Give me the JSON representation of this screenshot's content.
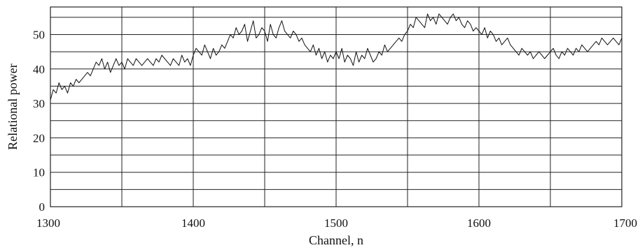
{
  "chart_data": {
    "type": "line",
    "title": "",
    "xlabel": "Channel, n",
    "ylabel": "Relational power",
    "xlim": [
      1300,
      1700
    ],
    "ylim": [
      0,
      58
    ],
    "x_ticks": [
      1300,
      1400,
      1500,
      1600,
      1700
    ],
    "x_grid": [
      1300,
      1350,
      1400,
      1450,
      1500,
      1550,
      1600,
      1650,
      1700
    ],
    "y_ticks": [
      0,
      10,
      20,
      30,
      40,
      50
    ],
    "y_grid": [
      0,
      5,
      10,
      15,
      20,
      25,
      30,
      35,
      40,
      45,
      50,
      55
    ],
    "grid": true,
    "series": [
      {
        "x": [
          1300,
          1302,
          1304,
          1306,
          1308,
          1310,
          1312,
          1314,
          1316,
          1318,
          1320,
          1322,
          1324,
          1326,
          1328,
          1330,
          1332,
          1334,
          1336,
          1338,
          1340,
          1342,
          1344,
          1346,
          1348,
          1350,
          1352,
          1354,
          1356,
          1358,
          1360,
          1362,
          1364,
          1366,
          1368,
          1370,
          1372,
          1374,
          1376,
          1378,
          1380,
          1382,
          1384,
          1386,
          1388,
          1390,
          1392,
          1394,
          1396,
          1398,
          1400,
          1402,
          1404,
          1406,
          1408,
          1410,
          1412,
          1414,
          1416,
          1418,
          1420,
          1422,
          1424,
          1426,
          1428,
          1430,
          1432,
          1434,
          1436,
          1438,
          1440,
          1442,
          1444,
          1446,
          1448,
          1450,
          1452,
          1454,
          1456,
          1458,
          1460,
          1462,
          1464,
          1466,
          1468,
          1470,
          1472,
          1474,
          1476,
          1478,
          1480,
          1482,
          1484,
          1486,
          1488,
          1490,
          1492,
          1494,
          1496,
          1498,
          1500,
          1502,
          1504,
          1506,
          1508,
          1510,
          1512,
          1514,
          1516,
          1518,
          1520,
          1522,
          1524,
          1526,
          1528,
          1530,
          1532,
          1534,
          1536,
          1538,
          1540,
          1542,
          1544,
          1546,
          1548,
          1550,
          1552,
          1554,
          1556,
          1558,
          1560,
          1562,
          1564,
          1566,
          1568,
          1570,
          1572,
          1574,
          1576,
          1578,
          1580,
          1582,
          1584,
          1586,
          1588,
          1590,
          1592,
          1594,
          1596,
          1598,
          1600,
          1602,
          1604,
          1606,
          1608,
          1610,
          1612,
          1614,
          1616,
          1618,
          1620,
          1622,
          1624,
          1626,
          1628,
          1630,
          1632,
          1634,
          1636,
          1638,
          1640,
          1642,
          1644,
          1646,
          1648,
          1650,
          1652,
          1654,
          1656,
          1658,
          1660,
          1662,
          1664,
          1666,
          1668,
          1670,
          1672,
          1674,
          1676,
          1678,
          1680,
          1682,
          1684,
          1686,
          1688,
          1690,
          1692,
          1694,
          1696,
          1698,
          1700
        ],
        "values": [
          31,
          34,
          33,
          36,
          34,
          35,
          33,
          36,
          35,
          37,
          36,
          37,
          38,
          39,
          38,
          40,
          42,
          41,
          43,
          40,
          42,
          39,
          41,
          43,
          41,
          42,
          40,
          43,
          42,
          41,
          43,
          42,
          41,
          42,
          43,
          42,
          41,
          43,
          42,
          44,
          43,
          42,
          41,
          43,
          42,
          41,
          44,
          42,
          43,
          41,
          44,
          46,
          45,
          44,
          47,
          45,
          43,
          46,
          44,
          45,
          47,
          46,
          48,
          50,
          49,
          52,
          50,
          51,
          53,
          48,
          51,
          54,
          49,
          50,
          52,
          51,
          48,
          53,
          50,
          49,
          52,
          54,
          51,
          50,
          49,
          51,
          50,
          48,
          49,
          47,
          46,
          45,
          47,
          44,
          46,
          43,
          45,
          42,
          44,
          43,
          45,
          43,
          46,
          42,
          44,
          43,
          41,
          45,
          42,
          44,
          43,
          46,
          44,
          42,
          43,
          45,
          44,
          47,
          45,
          46,
          47,
          48,
          49,
          48,
          50,
          51,
          53,
          52,
          55,
          54,
          53,
          52,
          56,
          54,
          55,
          53,
          56,
          55,
          54,
          53,
          55,
          56,
          54,
          55,
          53,
          52,
          54,
          53,
          51,
          52,
          51,
          50,
          52,
          49,
          51,
          50,
          48,
          49,
          47,
          48,
          49,
          47,
          46,
          45,
          44,
          46,
          45,
          44,
          45,
          43,
          44,
          45,
          44,
          43,
          44,
          45,
          46,
          44,
          43,
          45,
          44,
          46,
          45,
          44,
          46,
          45,
          47,
          46,
          45,
          46,
          47,
          48,
          47,
          49,
          48,
          47,
          48,
          49,
          48,
          47,
          49
        ]
      }
    ]
  }
}
